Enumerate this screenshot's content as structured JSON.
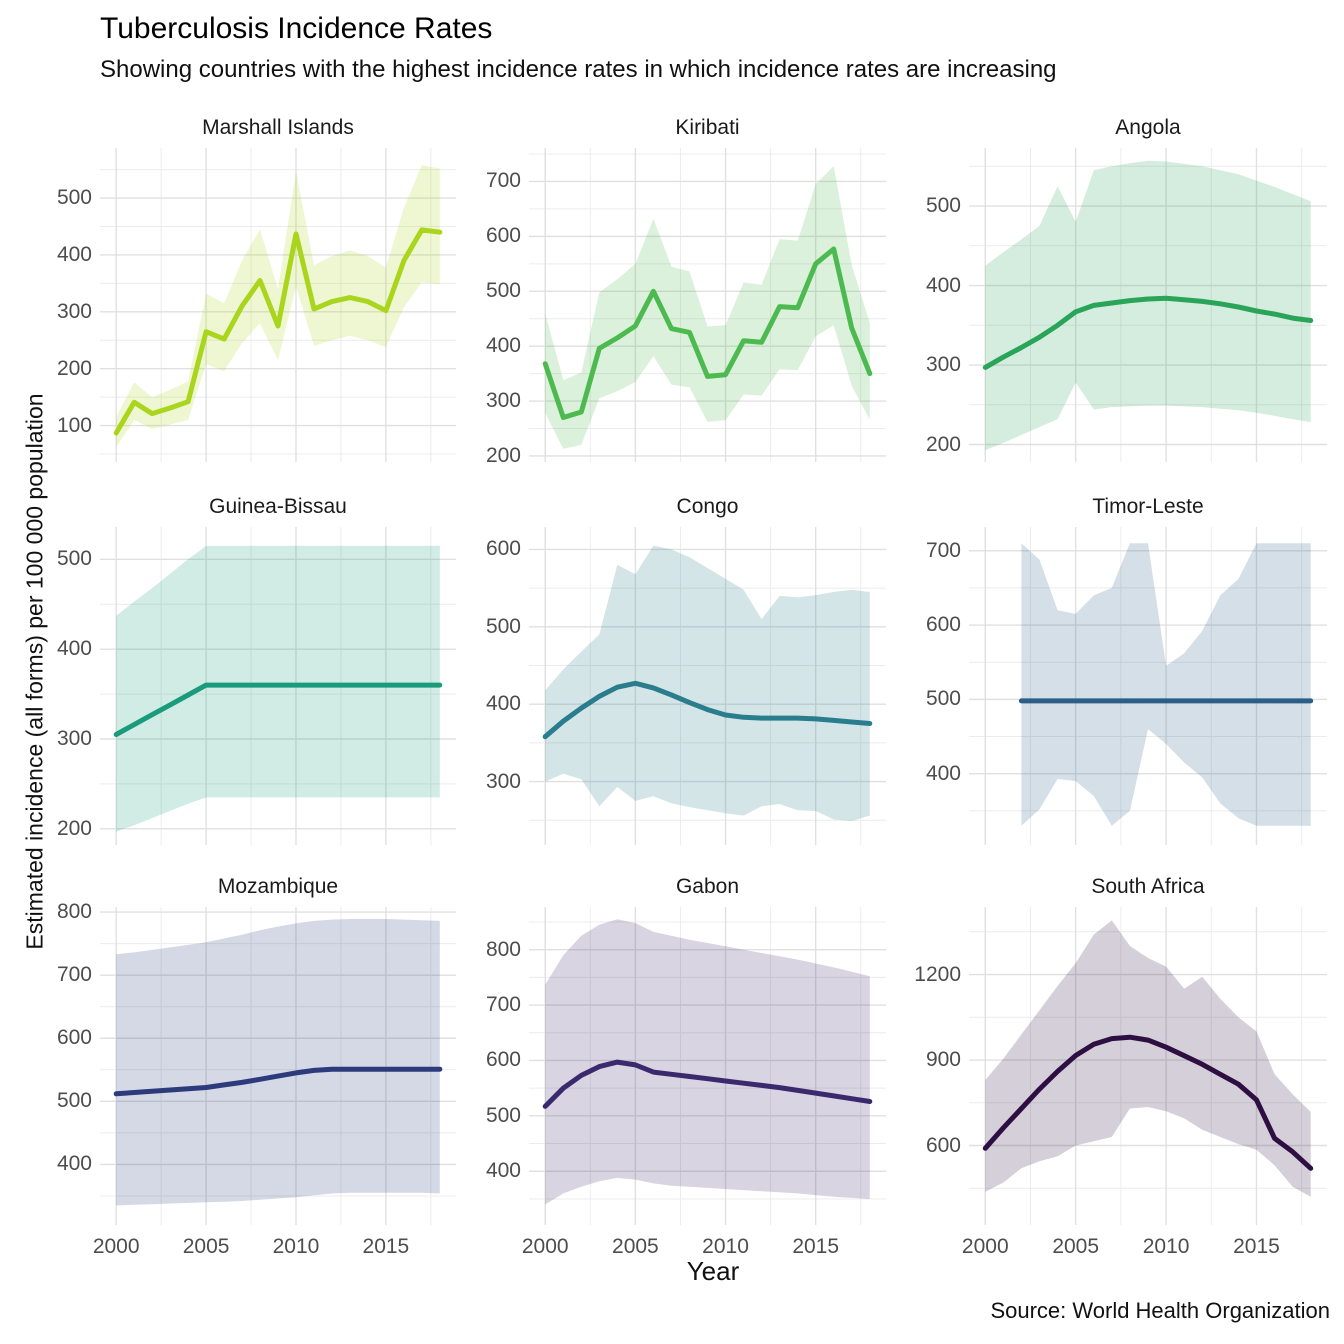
{
  "title": "Tuberculosis Incidence Rates",
  "subtitle": "Showing countries with the highest incidence rates in which incidence rates are increasing",
  "xlabel": "Year",
  "ylabel": "Estimated incidence (all forms) per 100 000 population",
  "caption": "Source: World Health Organization",
  "chart_data": {
    "type": "line",
    "grid": true,
    "legend": "none",
    "x_ticks": [
      2000,
      2005,
      2010,
      2015
    ],
    "x_minor": [
      2002.5,
      2007.5,
      2012.5,
      2017.5
    ],
    "x_domain": [
      1999.1,
      2018.9
    ],
    "ribbon_opacity": 0.2,
    "facets": [
      {
        "title": "Marshall Islands",
        "color": "#a9d51c",
        "y_domain": [
          36,
          588
        ],
        "y_ticks": [
          100,
          200,
          300,
          400,
          500
        ],
        "start_year": 2000,
        "values": [
          87,
          141,
          121,
          131,
          142,
          265,
          252,
          310,
          355,
          275,
          437,
          305,
          318,
          325,
          318,
          302,
          390,
          444,
          440
        ],
        "lower": [
          62,
          110,
          94,
          102,
          110,
          208,
          196,
          245,
          280,
          215,
          345,
          240,
          250,
          258,
          250,
          238,
          308,
          352,
          348
        ],
        "upper": [
          115,
          176,
          150,
          163,
          178,
          332,
          315,
          390,
          445,
          340,
          547,
          382,
          398,
          408,
          398,
          378,
          483,
          558,
          552
        ]
      },
      {
        "title": "Kiribati",
        "color": "#4dba50",
        "y_domain": [
          189,
          761
        ],
        "y_ticks": [
          200,
          300,
          400,
          500,
          600,
          700
        ],
        "start_year": 2000,
        "values": [
          368,
          270,
          280,
          396,
          415,
          437,
          500,
          432,
          425,
          345,
          348,
          410,
          407,
          472,
          470,
          550,
          577,
          433,
          350
        ],
        "lower": [
          278,
          213,
          220,
          305,
          318,
          335,
          382,
          330,
          325,
          262,
          265,
          312,
          310,
          358,
          356,
          418,
          438,
          328,
          266
        ],
        "upper": [
          460,
          338,
          352,
          498,
          522,
          550,
          632,
          545,
          536,
          436,
          438,
          516,
          512,
          595,
          592,
          695,
          728,
          548,
          442
        ]
      },
      {
        "title": "Angola",
        "color": "#2aa458",
        "y_domain": [
          178,
          573
        ],
        "y_ticks": [
          200,
          300,
          400,
          500
        ],
        "start_year": 2000,
        "values": [
          297,
          310,
          322,
          335,
          350,
          367,
          375,
          378,
          381,
          383,
          384,
          382,
          380,
          377,
          373,
          368,
          364,
          359,
          356
        ],
        "lower": [
          193,
          202,
          212,
          222,
          232,
          278,
          244,
          247,
          248,
          249,
          249,
          248,
          247,
          245,
          243,
          240,
          236,
          232,
          228
        ],
        "upper": [
          425,
          442,
          458,
          475,
          525,
          480,
          545,
          550,
          554,
          557,
          556,
          553,
          550,
          545,
          540,
          532,
          524,
          515,
          506
        ]
      },
      {
        "title": "Guinea-Bissau",
        "color": "#1a9b7c",
        "y_domain": [
          182,
          536
        ],
        "y_ticks": [
          200,
          300,
          400,
          500
        ],
        "start_year": 2000,
        "values": [
          305,
          316,
          327,
          338,
          349,
          360,
          360,
          360,
          360,
          360,
          360,
          360,
          360,
          360,
          360,
          360,
          360,
          360,
          360
        ],
        "lower": [
          197,
          204,
          212,
          220,
          228,
          235,
          235,
          235,
          235,
          235,
          235,
          235,
          235,
          235,
          235,
          235,
          235,
          235,
          235
        ],
        "upper": [
          437,
          453,
          468,
          484,
          500,
          515,
          515,
          515,
          515,
          515,
          515,
          515,
          515,
          515,
          515,
          515,
          515,
          515,
          515
        ]
      },
      {
        "title": "Congo",
        "color": "#2a7d8c",
        "y_domain": [
          218,
          629
        ],
        "y_ticks": [
          300,
          400,
          500,
          600
        ],
        "start_year": 2000,
        "values": [
          358,
          378,
          395,
          410,
          422,
          427,
          421,
          412,
          402,
          393,
          386,
          383,
          382,
          382,
          382,
          381,
          379,
          377,
          375
        ],
        "lower": [
          300,
          310,
          303,
          268,
          293,
          275,
          281,
          272,
          267,
          263,
          259,
          256,
          268,
          271,
          263,
          262,
          251,
          249,
          256
        ],
        "upper": [
          418,
          445,
          468,
          490,
          580,
          568,
          605,
          600,
          590,
          576,
          562,
          548,
          510,
          540,
          538,
          541,
          545,
          548,
          545
        ]
      },
      {
        "title": "Timor-Leste",
        "color": "#2b5f88",
        "y_domain": [
          304,
          732
        ],
        "y_ticks": [
          400,
          500,
          600,
          700
        ],
        "start_year": 2002,
        "values": [
          498,
          498,
          498,
          498,
          498,
          498,
          498,
          498,
          498,
          498,
          498,
          498,
          498,
          498,
          498,
          498,
          498
        ],
        "lower": [
          330,
          352,
          393,
          390,
          370,
          330,
          350,
          460,
          440,
          415,
          395,
          360,
          340,
          330,
          330,
          330,
          330
        ],
        "upper": [
          710,
          688,
          620,
          615,
          640,
          650,
          710,
          710,
          545,
          562,
          592,
          640,
          662,
          710,
          710,
          710,
          710
        ]
      },
      {
        "title": "Mozambique",
        "color": "#2d3a7c",
        "y_domain": [
          304,
          808
        ],
        "y_ticks": [
          400,
          500,
          600,
          700,
          800
        ],
        "start_year": 2000,
        "values": [
          512,
          514,
          516,
          518,
          520,
          522,
          526,
          530,
          535,
          540,
          545,
          549,
          551,
          551,
          551,
          551,
          551,
          551,
          551
        ],
        "lower": [
          335,
          336,
          337,
          338,
          339,
          340,
          341,
          342,
          344,
          346,
          348,
          351,
          354,
          355,
          355,
          355,
          355,
          355,
          354
        ],
        "upper": [
          733,
          736,
          740,
          744,
          748,
          752,
          758,
          764,
          771,
          777,
          782,
          786,
          788,
          789,
          789,
          789,
          788,
          787,
          786
        ]
      },
      {
        "title": "Gabon",
        "color": "#3a2a6d",
        "y_domain": [
          303,
          877
        ],
        "y_ticks": [
          400,
          500,
          600,
          700,
          800
        ],
        "start_year": 2000,
        "values": [
          517,
          550,
          573,
          589,
          597,
          592,
          579,
          575,
          571,
          567,
          563,
          559,
          555,
          551,
          546,
          541,
          536,
          531,
          526
        ],
        "lower": [
          340,
          360,
          372,
          382,
          388,
          385,
          378,
          374,
          372,
          370,
          368,
          366,
          364,
          362,
          360,
          357,
          354,
          352,
          350
        ],
        "upper": [
          737,
          790,
          825,
          845,
          855,
          848,
          832,
          825,
          818,
          812,
          806,
          800,
          794,
          788,
          782,
          775,
          768,
          760,
          752
        ]
      },
      {
        "title": "South Africa",
        "color": "#2e0f42",
        "y_domain": [
          321,
          1437
        ],
        "y_ticks": [
          600,
          900,
          1200
        ],
        "start_year": 2000,
        "values": [
          590,
          662,
          730,
          798,
          860,
          916,
          955,
          975,
          980,
          970,
          945,
          915,
          885,
          850,
          815,
          760,
          625,
          578,
          520
        ],
        "lower": [
          438,
          470,
          520,
          545,
          562,
          600,
          615,
          630,
          730,
          735,
          720,
          695,
          655,
          630,
          605,
          585,
          530,
          455,
          420
        ],
        "upper": [
          830,
          905,
          990,
          1075,
          1160,
          1240,
          1340,
          1390,
          1300,
          1258,
          1228,
          1150,
          1192,
          1115,
          1050,
          1000,
          850,
          780,
          718
        ]
      }
    ]
  }
}
